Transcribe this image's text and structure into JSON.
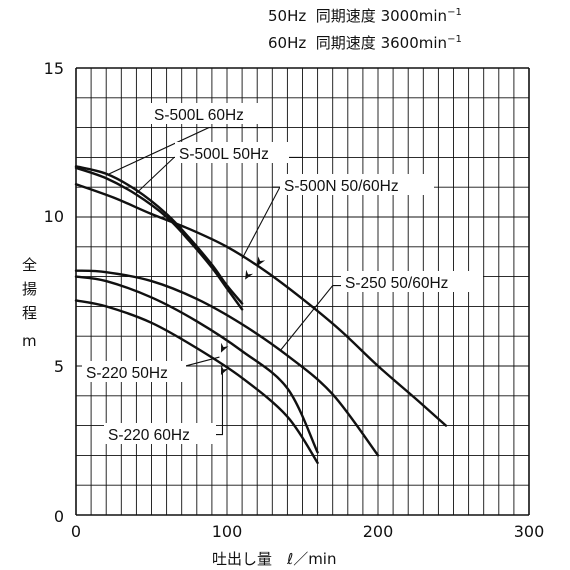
{
  "header": {
    "line1": {
      "freq": "50Hz",
      "label": "同期速度",
      "speed": "3000min",
      "exp": "−1"
    },
    "line2": {
      "freq": "60Hz",
      "label": "同期速度",
      "speed": "3600min",
      "exp": "−1"
    }
  },
  "chart_data": {
    "type": "line",
    "ylabel": [
      "全",
      "揚",
      "程",
      "m"
    ],
    "xlabel": "吐出し量　ℓ／min",
    "xlim": [
      0,
      300
    ],
    "ylim": [
      0,
      15
    ],
    "x_ticks": [
      "0",
      "100",
      "200",
      "300"
    ],
    "y_ticks": [
      "0",
      "5",
      "10",
      "15"
    ],
    "grid": true,
    "series": [
      {
        "name": "S-500L 60Hz",
        "points": [
          [
            0,
            11.7
          ],
          [
            20,
            11.45
          ],
          [
            40,
            10.9
          ],
          [
            60,
            10.1
          ],
          [
            75,
            9.3
          ],
          [
            90,
            8.4
          ],
          [
            100,
            7.7
          ],
          [
            110,
            7.1
          ]
        ]
      },
      {
        "name": "S-500L 50Hz",
        "points": [
          [
            0,
            11.65
          ],
          [
            20,
            11.3
          ],
          [
            40,
            10.75
          ],
          [
            60,
            10.0
          ],
          [
            75,
            9.2
          ],
          [
            90,
            8.3
          ],
          [
            100,
            7.6
          ],
          [
            110,
            6.9
          ]
        ]
      },
      {
        "name": "S-500N 50/60Hz",
        "points": [
          [
            0,
            11.1
          ],
          [
            25,
            10.65
          ],
          [
            50,
            10.1
          ],
          [
            75,
            9.6
          ],
          [
            100,
            9.0
          ],
          [
            125,
            8.2
          ],
          [
            150,
            7.25
          ],
          [
            175,
            6.2
          ],
          [
            200,
            5.0
          ],
          [
            225,
            3.9
          ],
          [
            245,
            3.0
          ]
        ]
      },
      {
        "name": "S-250 50/60Hz",
        "points": [
          [
            0,
            8.2
          ],
          [
            20,
            8.15
          ],
          [
            50,
            7.85
          ],
          [
            80,
            7.25
          ],
          [
            110,
            6.4
          ],
          [
            140,
            5.35
          ],
          [
            170,
            4.05
          ],
          [
            200,
            2.0
          ]
        ]
      },
      {
        "name": "S-220 50Hz",
        "points": [
          [
            0,
            8.0
          ],
          [
            20,
            7.85
          ],
          [
            50,
            7.3
          ],
          [
            80,
            6.5
          ],
          [
            110,
            5.5
          ],
          [
            140,
            4.25
          ],
          [
            160,
            2.1
          ]
        ]
      },
      {
        "name": "S-220 60Hz",
        "points": [
          [
            0,
            7.2
          ],
          [
            20,
            7.0
          ],
          [
            50,
            6.45
          ],
          [
            80,
            5.6
          ],
          [
            110,
            4.6
          ],
          [
            140,
            3.3
          ],
          [
            160,
            1.75
          ]
        ]
      }
    ],
    "labels": {
      "s500l60": "S-500L 60Hz",
      "s500l50": "S-500L 50Hz",
      "s500n": "S-500N 50/60Hz",
      "s250": "S-250 50/60Hz",
      "s220_50": "S-220 50Hz",
      "s220_60": "S-220 60Hz"
    }
  }
}
